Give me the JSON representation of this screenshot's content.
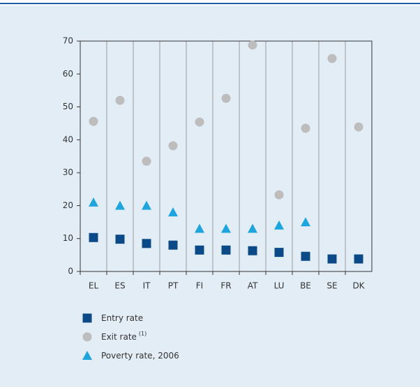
{
  "chart_data": {
    "type": "dot",
    "categories": [
      "EL",
      "ES",
      "IT",
      "PT",
      "FI",
      "FR",
      "AT",
      "LU",
      "BE",
      "SE",
      "DK"
    ],
    "series": [
      {
        "name": "Entry rate",
        "color": "#0b4a86",
        "marker": "square",
        "values": [
          10.3,
          9.8,
          8.5,
          8,
          6.5,
          6.5,
          6.3,
          5.8,
          4.6,
          3.8,
          3.8
        ]
      },
      {
        "name": "Exit rate",
        "footnote": "(1)",
        "color": "#bdbdbd",
        "marker": "circle",
        "values": [
          45.6,
          52,
          33.5,
          38.2,
          45.4,
          52.6,
          68.8,
          23.3,
          43.5,
          64.7,
          43.9
        ]
      },
      {
        "name": "Poverty rate, 2006",
        "color": "#1ea5de",
        "marker": "triangle",
        "values": [
          21,
          20,
          20,
          18,
          13,
          13,
          13,
          14,
          15,
          null,
          null
        ]
      }
    ],
    "ylim": [
      0,
      70
    ],
    "yticks": [
      0,
      10,
      20,
      30,
      40,
      50,
      60,
      70
    ],
    "grid": "vertical"
  }
}
